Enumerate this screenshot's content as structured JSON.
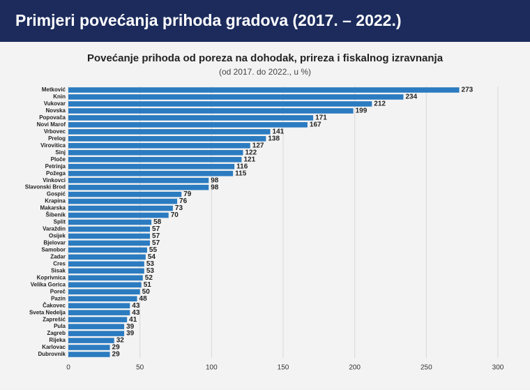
{
  "header": {
    "title": "Primjeri povećanja prihoda gradova (2017. – 2022.)"
  },
  "chart_data": {
    "type": "barh",
    "title": "Povećanje prihoda od poreza na dohodak, prireza i fiskalnog izravnanja",
    "subtitle": "(od 2017. do 2022., u %)",
    "categories": [
      "Metković",
      "Knin",
      "Vukovar",
      "Novska",
      "Popovača",
      "Novi Marof",
      "Vrbovec",
      "Prelog",
      "Virovitica",
      "Sinj",
      "Ploče",
      "Petrinja",
      "Požega",
      "Vinkovci",
      "Slavonski Brod",
      "Gospić",
      "Krapina",
      "Makarska",
      "Šibenik",
      "Split",
      "Varaždin",
      "Osijek",
      "Bjelovar",
      "Samobor",
      "Zadar",
      "Cres",
      "Sisak",
      "Koprivnica",
      "Velika Gorica",
      "Poreč",
      "Pazin",
      "Čakovec",
      "Sveta Nedelja",
      "Zaprešić",
      "Pula",
      "Zagreb",
      "Rijeka",
      "Karlovac",
      "Dubrovnik"
    ],
    "values": [
      273,
      234,
      212,
      199,
      171,
      167,
      141,
      138,
      127,
      122,
      121,
      116,
      115,
      98,
      98,
      79,
      76,
      73,
      70,
      58,
      57,
      57,
      57,
      55,
      54,
      53,
      53,
      52,
      51,
      50,
      48,
      43,
      43,
      41,
      39,
      39,
      32,
      29,
      29
    ],
    "color": "#2b7bc0",
    "xlim": [
      0,
      300
    ],
    "xticks": [
      0,
      50,
      100,
      150,
      200,
      250,
      300
    ],
    "grid": true
  }
}
